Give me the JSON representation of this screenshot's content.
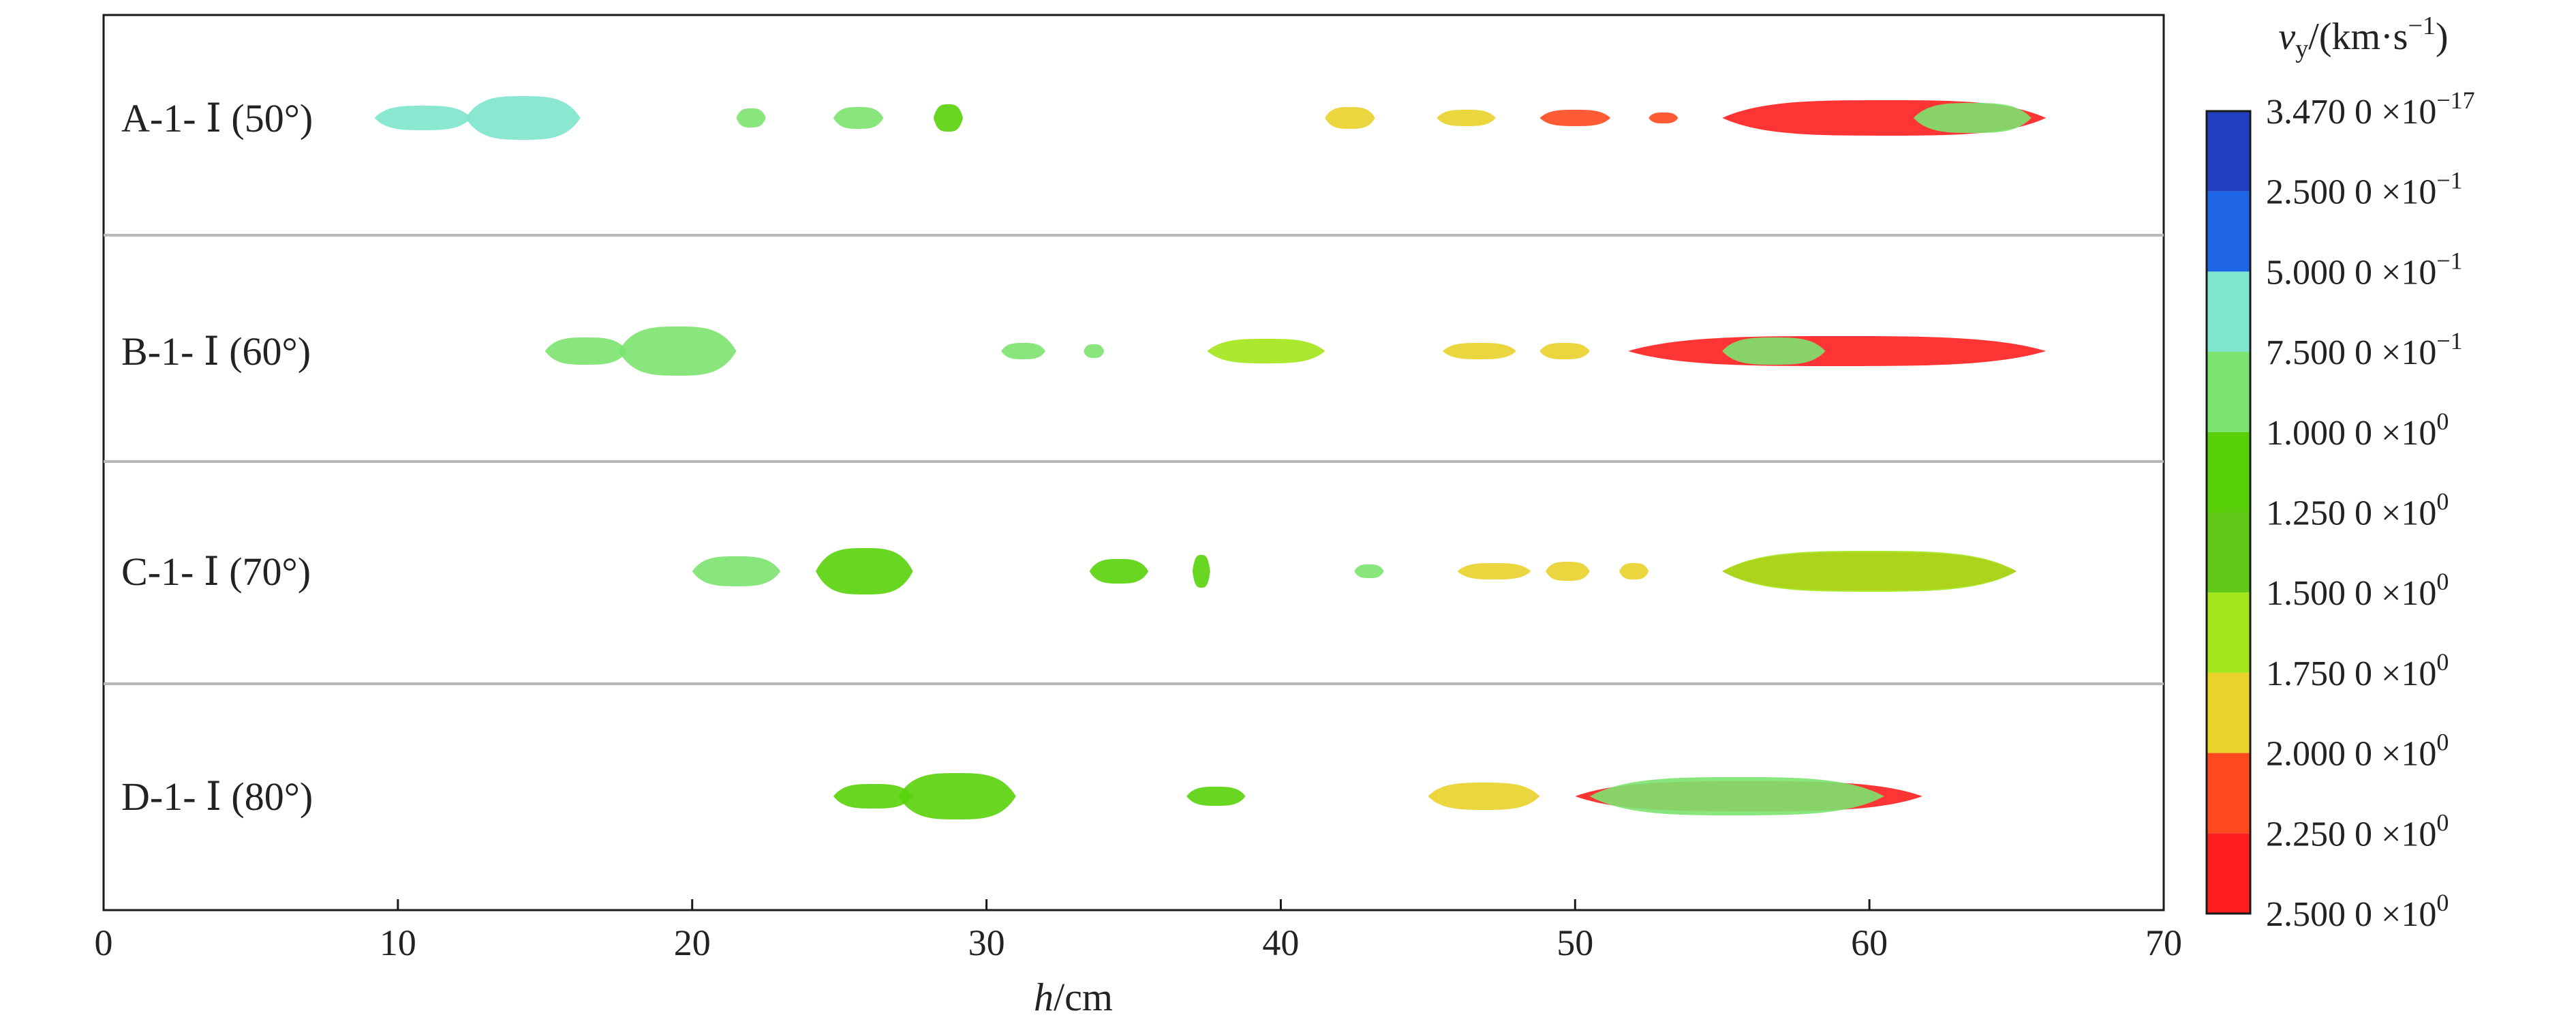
{
  "chart_data": {
    "type": "scatter",
    "xlabel": {
      "italic": "h",
      "rest": "/cm"
    },
    "xlim": [
      0,
      70
    ],
    "xticks": [
      "0",
      "10",
      "20",
      "30",
      "40",
      "50",
      "60",
      "70"
    ],
    "grid": false,
    "colorbar": {
      "title": {
        "var": "v",
        "sub": "y",
        "units": "/(km·s",
        "sup": "−1",
        "close": ")"
      },
      "placement": "right",
      "colors": [
        "#1f3fbf",
        "#1f66e6",
        "#7de6cc",
        "#7be36f",
        "#59d10a",
        "#62c91a",
        "#a3e61a",
        "#ead22a",
        "#ff4a1f",
        "#ff1f1f"
      ],
      "labels": [
        {
          "m": "3.470 0",
          "e": "−17"
        },
        {
          "m": "2.500 0",
          "e": "−1"
        },
        {
          "m": "5.000 0",
          "e": "−1"
        },
        {
          "m": "7.500 0",
          "e": "−1"
        },
        {
          "m": "1.000 0",
          "e": "0"
        },
        {
          "m": "1.250 0",
          "e": "0"
        },
        {
          "m": "1.500 0",
          "e": "0"
        },
        {
          "m": "1.750 0",
          "e": "0"
        },
        {
          "m": "2.000 0",
          "e": "0"
        },
        {
          "m": "2.250 0",
          "e": "0"
        },
        {
          "m": "2.500 0",
          "e": "0"
        }
      ]
    },
    "rows": [
      {
        "label": "A-1- Ⅰ (50°)",
        "clusters": [
          {
            "x0": 9.2,
            "x1": 12.5,
            "halfwidth": 0.45,
            "color": "#7de6cc"
          },
          {
            "x0": 12.3,
            "x1": 16.2,
            "halfwidth": 0.8,
            "color": "#7de6cc"
          },
          {
            "x0": 21.5,
            "x1": 22.5,
            "halfwidth": 0.35,
            "color": "#7be36f"
          },
          {
            "x0": 24.8,
            "x1": 26.5,
            "halfwidth": 0.4,
            "color": "#7be36f"
          },
          {
            "x0": 28.2,
            "x1": 29.2,
            "halfwidth": 0.5,
            "color": "#59d10a"
          },
          {
            "x0": 41.5,
            "x1": 43.2,
            "halfwidth": 0.4,
            "color": "#ead22a"
          },
          {
            "x0": 45.3,
            "x1": 47.3,
            "halfwidth": 0.3,
            "color": "#ead22a"
          },
          {
            "x0": 48.8,
            "x1": 51.2,
            "halfwidth": 0.3,
            "color": "#ff4a1f"
          },
          {
            "x0": 52.5,
            "x1": 53.5,
            "halfwidth": 0.2,
            "color": "#ff4a1f"
          },
          {
            "x0": 55.0,
            "x1": 66.0,
            "halfwidth": 0.65,
            "color": "#ff1f1f"
          },
          {
            "x0": 61.5,
            "x1": 65.5,
            "halfwidth": 0.55,
            "color": "#7be36f"
          }
        ]
      },
      {
        "label": "B-1- Ⅰ (60°)",
        "clusters": [
          {
            "x0": 15.0,
            "x1": 17.8,
            "halfwidth": 0.5,
            "color": "#7be36f"
          },
          {
            "x0": 17.5,
            "x1": 21.5,
            "halfwidth": 0.9,
            "color": "#7be36f"
          },
          {
            "x0": 30.5,
            "x1": 32.0,
            "halfwidth": 0.3,
            "color": "#7be36f"
          },
          {
            "x0": 33.3,
            "x1": 34.0,
            "halfwidth": 0.25,
            "color": "#7be36f"
          },
          {
            "x0": 37.5,
            "x1": 41.5,
            "halfwidth": 0.45,
            "color": "#a3e61a"
          },
          {
            "x0": 45.5,
            "x1": 48.0,
            "halfwidth": 0.3,
            "color": "#ead22a"
          },
          {
            "x0": 48.8,
            "x1": 50.5,
            "halfwidth": 0.3,
            "color": "#ead22a"
          },
          {
            "x0": 51.8,
            "x1": 66.0,
            "halfwidth": 0.55,
            "color": "#ff1f1f"
          },
          {
            "x0": 55.0,
            "x1": 58.5,
            "halfwidth": 0.5,
            "color": "#7be36f"
          }
        ]
      },
      {
        "label": "C-1- Ⅰ (70°)",
        "clusters": [
          {
            "x0": 20.0,
            "x1": 23.0,
            "halfwidth": 0.55,
            "color": "#7be36f"
          },
          {
            "x0": 24.2,
            "x1": 27.5,
            "halfwidth": 0.85,
            "color": "#59d10a"
          },
          {
            "x0": 33.5,
            "x1": 35.5,
            "halfwidth": 0.45,
            "color": "#59d10a"
          },
          {
            "x0": 37.0,
            "x1": 37.6,
            "halfwidth": 0.6,
            "color": "#59d10a"
          },
          {
            "x0": 42.5,
            "x1": 43.5,
            "halfwidth": 0.25,
            "color": "#7be36f"
          },
          {
            "x0": 46.0,
            "x1": 48.5,
            "halfwidth": 0.3,
            "color": "#ead22a"
          },
          {
            "x0": 49.0,
            "x1": 50.5,
            "halfwidth": 0.35,
            "color": "#ead22a"
          },
          {
            "x0": 51.5,
            "x1": 52.5,
            "halfwidth": 0.3,
            "color": "#ead22a"
          },
          {
            "x0": 55.0,
            "x1": 65.0,
            "halfwidth": 0.7,
            "color": "#ff1f1f"
          },
          {
            "x0": 55.0,
            "x1": 65.0,
            "halfwidth": 0.75,
            "color": "#a3e61a"
          }
        ]
      },
      {
        "label": "D-1- Ⅰ (80°)",
        "clusters": [
          {
            "x0": 24.8,
            "x1": 27.5,
            "halfwidth": 0.45,
            "color": "#59d10a"
          },
          {
            "x0": 27.0,
            "x1": 31.0,
            "halfwidth": 0.85,
            "color": "#59d10a"
          },
          {
            "x0": 36.8,
            "x1": 38.8,
            "halfwidth": 0.35,
            "color": "#59d10a"
          },
          {
            "x0": 45.0,
            "x1": 48.8,
            "halfwidth": 0.5,
            "color": "#ead22a"
          },
          {
            "x0": 50.0,
            "x1": 61.8,
            "halfwidth": 0.55,
            "color": "#ff1f1f"
          },
          {
            "x0": 50.5,
            "x1": 60.5,
            "halfwidth": 0.7,
            "color": "#7be36f"
          }
        ]
      }
    ]
  }
}
